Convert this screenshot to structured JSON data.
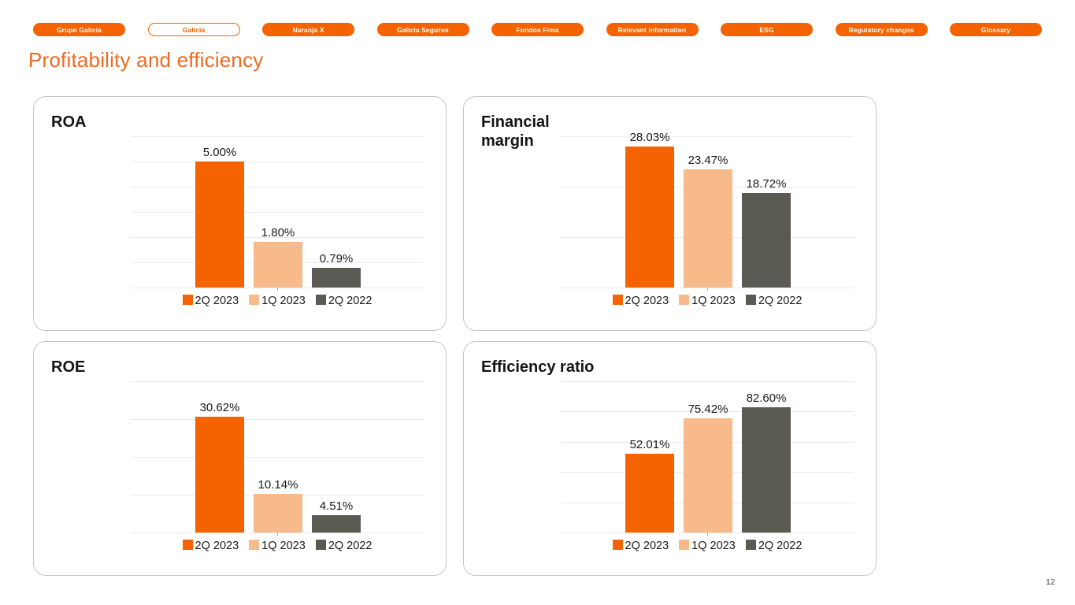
{
  "page": {
    "title": "Profitability and efficiency",
    "page_number": "12"
  },
  "nav": {
    "items": [
      {
        "label": "Grupo Galicia",
        "active": false
      },
      {
        "label": "Galicia",
        "active": true
      },
      {
        "label": "Naranja X",
        "active": false
      },
      {
        "label": "Galicia Seguros",
        "active": false
      },
      {
        "label": "Fondos Fima",
        "active": false
      },
      {
        "label": "Relevant information",
        "active": false
      },
      {
        "label": "ESG",
        "active": false
      },
      {
        "label": "Regulatory changes",
        "active": false
      },
      {
        "label": "Glossary",
        "active": false
      }
    ]
  },
  "colors": {
    "brand_orange": "#F56300",
    "peach": "#F8BA8A",
    "dark_gray": "#5B5A52",
    "title_orange": "#EF6A21",
    "gridline": "#EAEAEA",
    "card_border": "#C6C6C6",
    "text_dark": "#1A1A1A"
  },
  "legend": {
    "items": [
      {
        "label": "2Q 2023",
        "color": "#F56300"
      },
      {
        "label": "1Q 2023",
        "color": "#F8BA8A"
      },
      {
        "label": "2Q 2022",
        "color": "#5B5A52"
      }
    ]
  },
  "chart_data": [
    {
      "type": "bar",
      "title": "ROA",
      "categories": [
        "2Q 2023",
        "1Q 2023",
        "2Q 2022"
      ],
      "values": [
        5.0,
        1.8,
        0.79
      ],
      "value_labels": [
        "5.00%",
        "1.80%",
        "0.79%"
      ],
      "ylim": [
        0,
        6
      ],
      "grid_interval": 1,
      "grid_on": true,
      "legend_position": "bottom"
    },
    {
      "type": "bar",
      "title": "Financial margin",
      "categories": [
        "2Q 2023",
        "1Q 2023",
        "2Q 2022"
      ],
      "values": [
        28.03,
        23.47,
        18.72
      ],
      "value_labels": [
        "28.03%",
        "23.47%",
        "18.72%"
      ],
      "ylim": [
        0,
        30
      ],
      "grid_interval": 10,
      "grid_on": true,
      "legend_position": "bottom"
    },
    {
      "type": "bar",
      "title": "ROE",
      "categories": [
        "2Q 2023",
        "1Q 2023",
        "2Q 2022"
      ],
      "values": [
        30.62,
        10.14,
        4.51
      ],
      "value_labels": [
        "30.62%",
        "10.14%",
        "4.51%"
      ],
      "ylim": [
        0,
        40
      ],
      "grid_interval": 10,
      "grid_on": true,
      "legend_position": "bottom"
    },
    {
      "type": "bar",
      "title": "Efficiency ratio",
      "categories": [
        "2Q 2023",
        "1Q 2023",
        "2Q 2022"
      ],
      "values": [
        52.01,
        75.42,
        82.6
      ],
      "value_labels": [
        "52.01%",
        "75.42%",
        "82.60%"
      ],
      "ylim": [
        0,
        100
      ],
      "grid_interval": 20,
      "grid_on": true,
      "legend_position": "bottom"
    }
  ]
}
